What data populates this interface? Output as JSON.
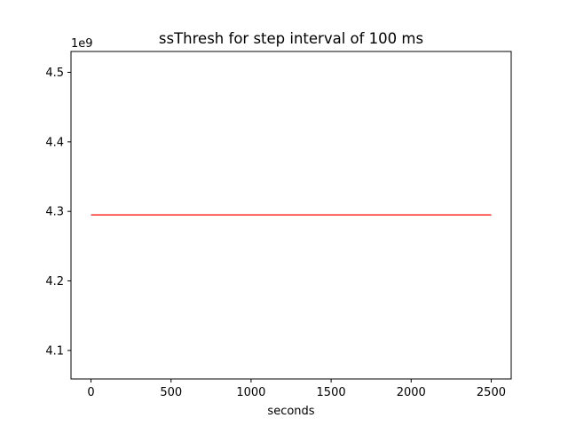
{
  "chart_data": {
    "type": "line",
    "title": "ssThresh for step interval of 100 ms",
    "xlabel": "seconds",
    "ylabel": "",
    "offset_text": "1e9",
    "xlim": [
      -125,
      2625
    ],
    "ylim": [
      4058986000,
      4530000000
    ],
    "x_ticks": [
      0,
      500,
      1000,
      1500,
      2000,
      2500
    ],
    "x_tick_labels": [
      "0",
      "500",
      "1000",
      "1500",
      "2000",
      "2500"
    ],
    "y_ticks": [
      4100000000,
      4200000000,
      4300000000,
      4400000000,
      4500000000
    ],
    "y_tick_labels": [
      "4.1",
      "4.2",
      "4.3",
      "4.4",
      "4.5"
    ],
    "grid": false,
    "series": [
      {
        "color": "#ff0000",
        "x": [
          0,
          2500
        ],
        "y": [
          4294967295,
          4294967295
        ]
      }
    ]
  }
}
